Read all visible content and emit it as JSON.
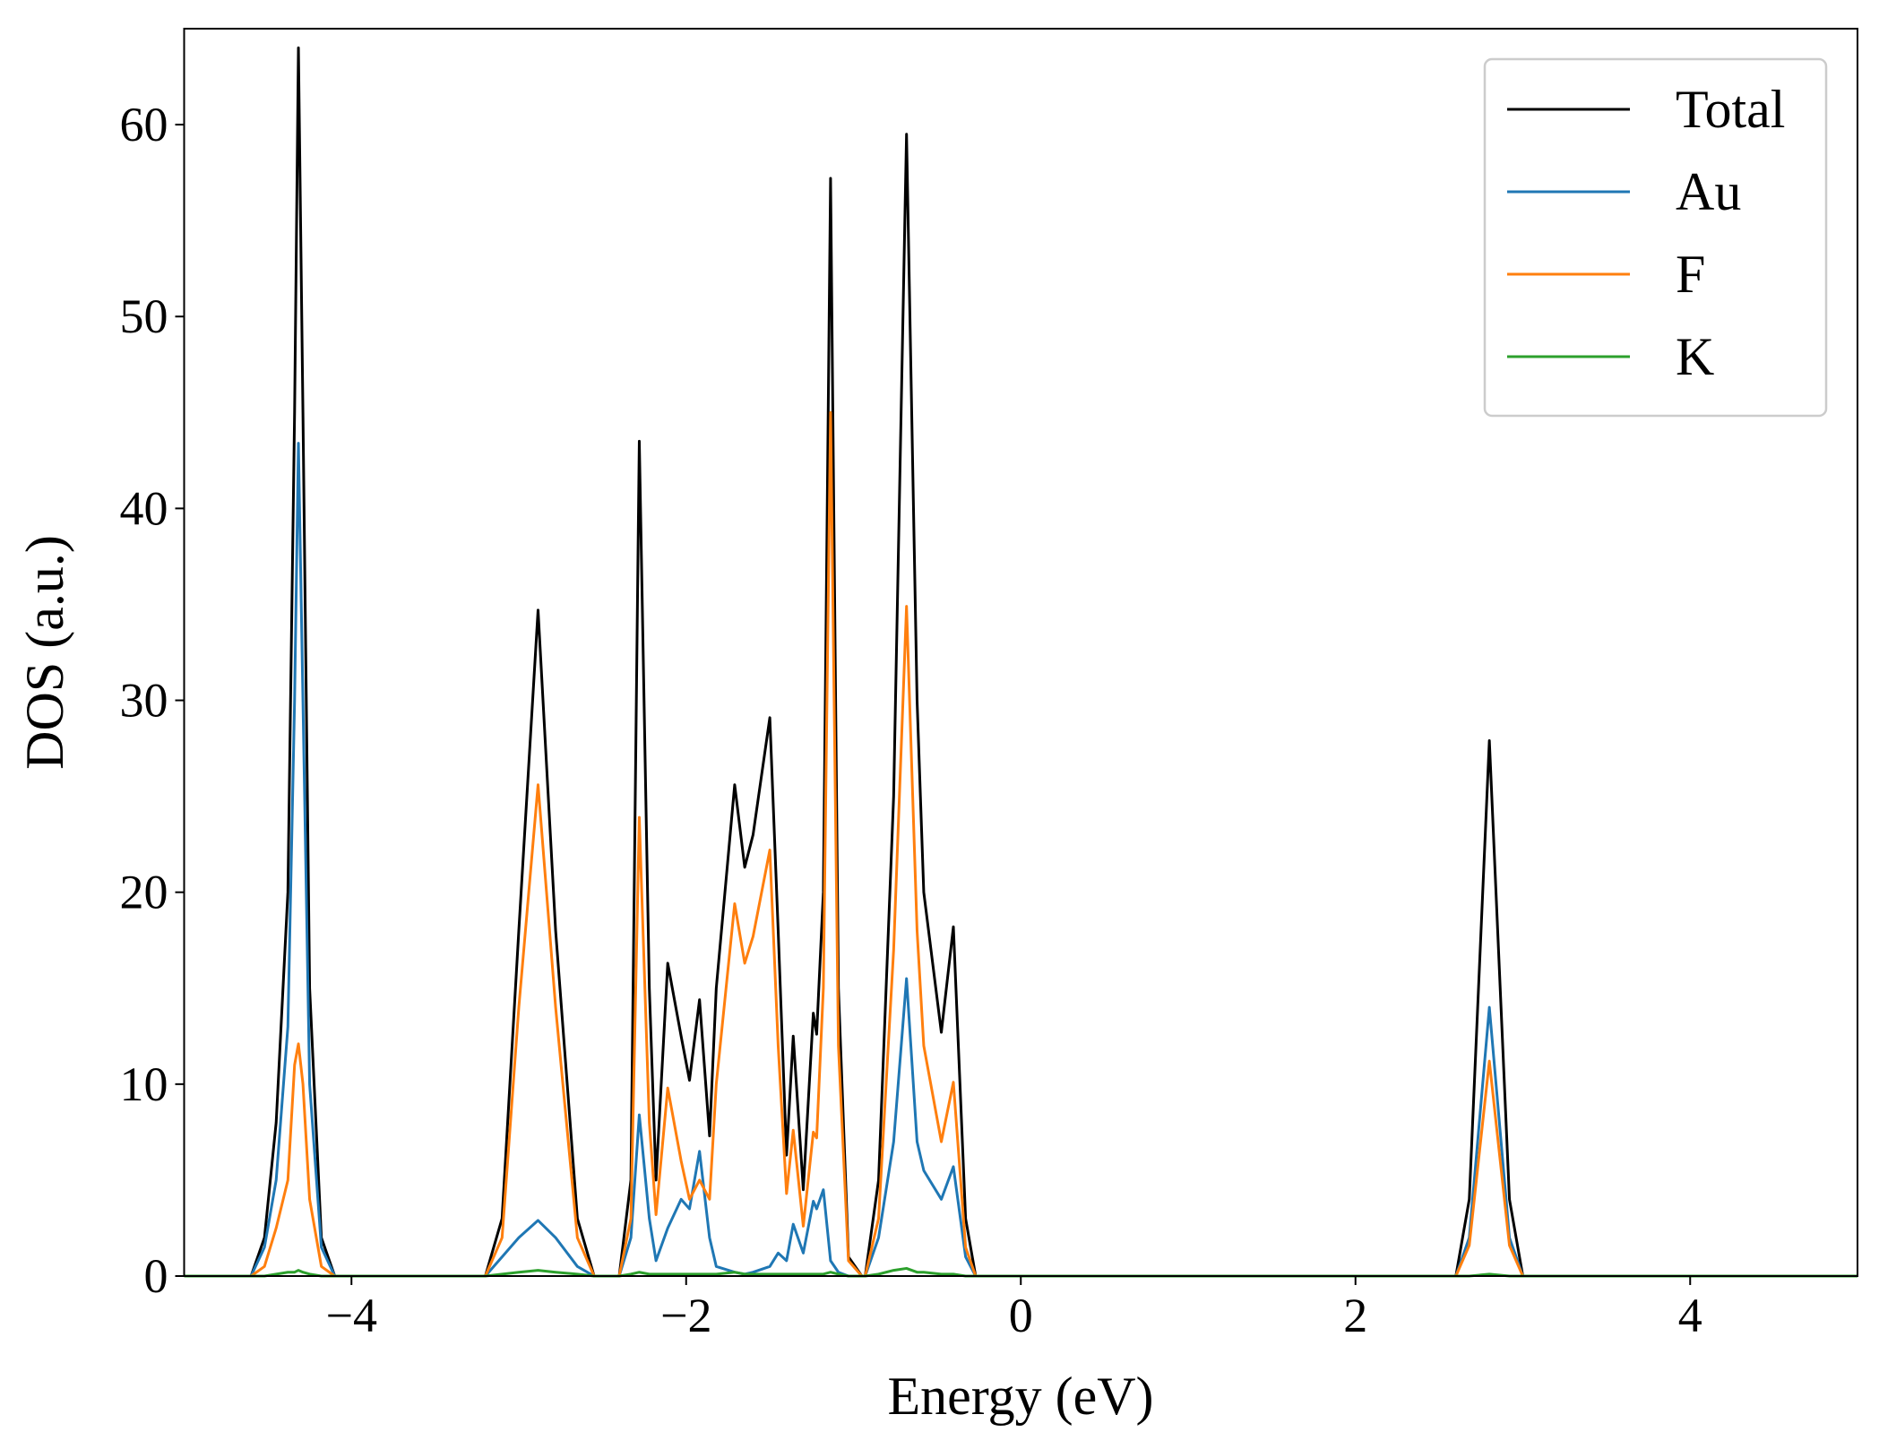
{
  "chart_data": {
    "type": "line",
    "xlabel": "Energy (eV)",
    "ylabel": "DOS (a.u.)",
    "xlim": [
      -5,
      5
    ],
    "ylim": [
      0,
      65
    ],
    "xticks": [
      {
        "value": -4,
        "label": "−4"
      },
      {
        "value": -2,
        "label": "−2"
      },
      0,
      2,
      4
    ],
    "yticks": [
      0,
      10,
      20,
      30,
      40,
      50,
      60
    ],
    "legend": "upper right",
    "grid": false,
    "x": [
      -5,
      -4.6,
      -4.52,
      -4.45,
      -4.38,
      -4.34,
      -4.317,
      -4.29,
      -4.25,
      -4.18,
      -4.1,
      -3.2,
      -3.1,
      -3.0,
      -2.885,
      -2.78,
      -2.65,
      -2.55,
      -2.4,
      -2.33,
      -2.28,
      -2.22,
      -2.18,
      -2.11,
      -2.03,
      -1.98,
      -1.92,
      -1.86,
      -1.82,
      -1.71,
      -1.65,
      -1.6,
      -1.5,
      -1.45,
      -1.4,
      -1.36,
      -1.3,
      -1.24,
      -1.22,
      -1.18,
      -1.137,
      -1.09,
      -1.03,
      -0.95,
      -0.93,
      -0.85,
      -0.76,
      -0.683,
      -0.62,
      -0.58,
      -0.475,
      -0.403,
      -0.33,
      -0.27,
      2.6,
      2.68,
      2.8,
      2.92,
      3.0,
      5
    ],
    "series": [
      {
        "name": "Total",
        "color": "#000000",
        "values": [
          0,
          0,
          2,
          8,
          20,
          45,
          64,
          45,
          15,
          2,
          0,
          0,
          3,
          18,
          34.7,
          18,
          3,
          0,
          0,
          5,
          43.5,
          15,
          5,
          16.3,
          12.5,
          10.2,
          14.4,
          7.3,
          15,
          25.6,
          21.3,
          23,
          29.1,
          18,
          6.3,
          12.5,
          4.5,
          13.7,
          12.6,
          20,
          57.2,
          15,
          1,
          0,
          0,
          5,
          25,
          59.5,
          30,
          20,
          12.7,
          18.2,
          3,
          0,
          0,
          4,
          27.9,
          4,
          0,
          0
        ]
      },
      {
        "name": "Au",
        "color": "#1f77b4",
        "values": [
          0,
          0,
          1.5,
          5,
          13,
          30,
          43.4,
          30,
          10,
          1.5,
          0,
          0,
          1,
          2,
          2.9,
          2,
          0.5,
          0,
          0,
          2,
          8.4,
          3,
          0.8,
          2.5,
          4,
          3.5,
          6.5,
          2,
          0.5,
          0.2,
          0.1,
          0.2,
          0.5,
          1.2,
          0.8,
          2.7,
          1.2,
          3.9,
          3.5,
          4.5,
          0.8,
          0.2,
          0,
          0,
          0,
          2,
          7,
          15.5,
          7,
          5.5,
          4,
          5.7,
          1,
          0,
          0,
          2,
          14,
          2,
          0,
          0
        ]
      },
      {
        "name": "F",
        "color": "#ff7f0e",
        "values": [
          0,
          0,
          0.5,
          2.5,
          5,
          11,
          12.1,
          10,
          4,
          0.5,
          0,
          0,
          2,
          14,
          25.6,
          14,
          2,
          0,
          0,
          3,
          23.9,
          8,
          3.2,
          9.8,
          6,
          4,
          5,
          4,
          10,
          19.4,
          16.3,
          17.7,
          22.2,
          12,
          4.3,
          7.6,
          2.6,
          7.5,
          7.2,
          15,
          45,
          12,
          0.8,
          0,
          0,
          3,
          17,
          34.9,
          18,
          12,
          7,
          10.1,
          1.5,
          0,
          0,
          1.6,
          11.2,
          1.6,
          0,
          0
        ]
      },
      {
        "name": "K",
        "color": "#2ca02c",
        "values": [
          0,
          0,
          0,
          0.1,
          0.2,
          0.2,
          0.3,
          0.2,
          0.1,
          0,
          0,
          0,
          0.1,
          0.2,
          0.3,
          0.2,
          0.1,
          0,
          0,
          0.1,
          0.2,
          0.1,
          0.1,
          0.1,
          0.1,
          0.1,
          0.1,
          0.1,
          0.1,
          0.2,
          0.1,
          0.1,
          0.1,
          0.1,
          0.1,
          0.1,
          0.1,
          0.1,
          0.1,
          0.1,
          0.2,
          0.1,
          0,
          0,
          0,
          0.1,
          0.3,
          0.4,
          0.2,
          0.2,
          0.1,
          0.1,
          0,
          0,
          0,
          0,
          0.1,
          0,
          0,
          0
        ]
      }
    ]
  }
}
